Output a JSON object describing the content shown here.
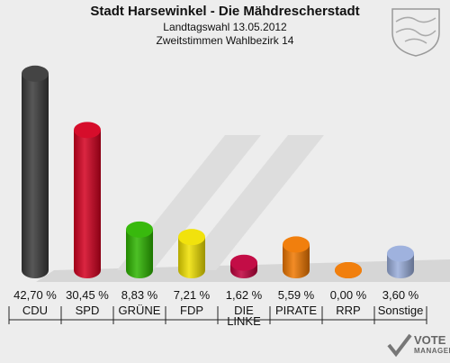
{
  "header": {
    "title": "Stadt Harsewinkel - Die Mähdrescherstadt",
    "subtitle1": "Landtagswahl 13.05.2012",
    "subtitle2": "Zweitstimmen Wahlbezirk 14"
  },
  "watermark": {
    "line1": "VOTE",
    "line2": "MANAGER"
  },
  "chart_data": {
    "type": "bar",
    "categories": [
      "CDU",
      "SPD",
      "GRÜNE",
      "FDP",
      "DIE LINKE",
      "PIRATE",
      "RRP",
      "Sonstige"
    ],
    "values": [
      42.7,
      30.45,
      8.83,
      7.21,
      1.62,
      5.59,
      0.0,
      3.6
    ],
    "value_labels": [
      "42,70 %",
      "30,45 %",
      "8,83 %",
      "7,21 %",
      "1,62 %",
      "5,59 %",
      "0,00 %",
      "3,60 %"
    ],
    "colors": [
      "#3a3a3a",
      "#d40020",
      "#2db500",
      "#f0e000",
      "#c0003c",
      "#f07800",
      "#f07800",
      "#9aaedc"
    ],
    "title": "Stadt Harsewinkel - Die Mähdrescherstadt",
    "ylim": [
      0,
      45
    ]
  }
}
